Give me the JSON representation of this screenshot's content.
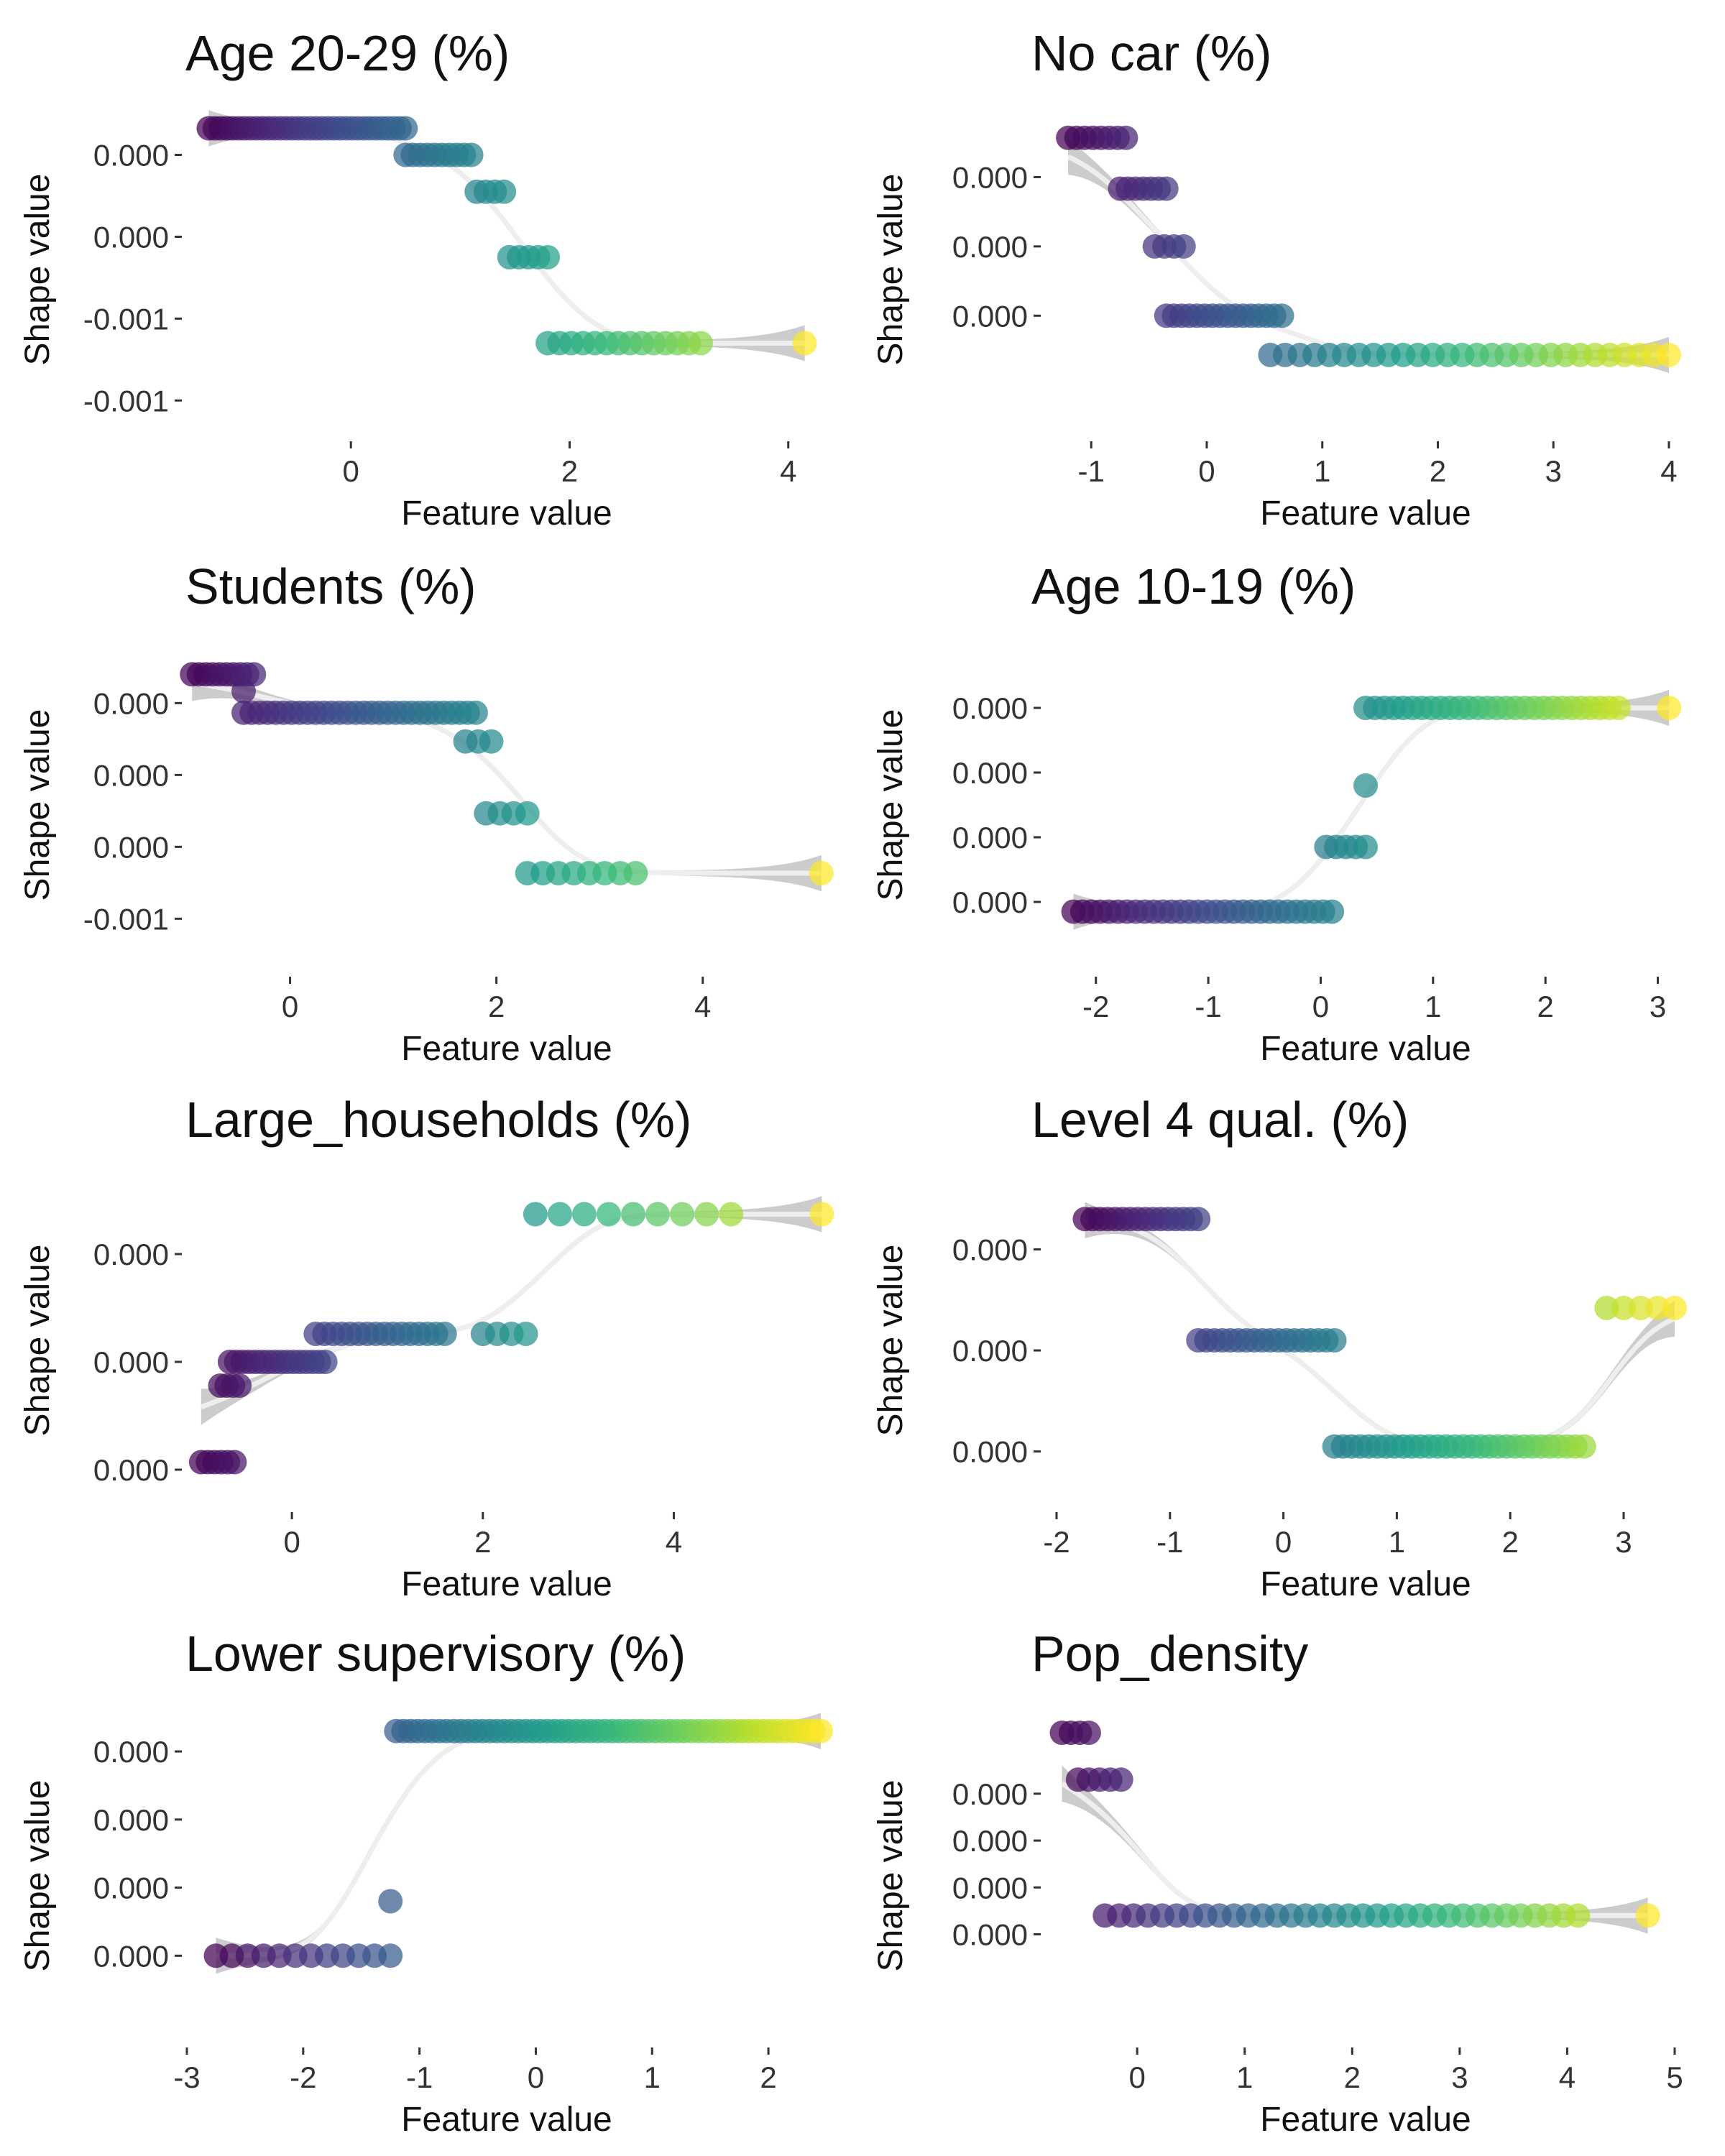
{
  "chart_data": [
    {
      "type": "scatter",
      "title": "Age 20-29 (%)",
      "xlabel": "Feature value",
      "ylabel": "Shape value",
      "xlim": [
        -1.5,
        4.35
      ],
      "ylim": [
        -0.00125,
        0.00033
      ],
      "xticks": [
        {
          "v": 0,
          "label": "0"
        },
        {
          "v": 2,
          "label": "2"
        },
        {
          "v": 4,
          "label": "4"
        }
      ],
      "yticks": [
        {
          "v": 0.0001,
          "label": "0.000"
        },
        {
          "v": -0.0003,
          "label": "0.000"
        },
        {
          "v": -0.0007,
          "label": "-0.001"
        },
        {
          "v": -0.0011,
          "label": "-0.001"
        }
      ],
      "steps": [
        {
          "x0": -1.3,
          "x1": 0.5,
          "y": 0.00023,
          "n": 34
        },
        {
          "x0": 0.5,
          "x1": 1.1,
          "y": 0.0001,
          "n": 10
        },
        {
          "x0": 1.15,
          "x1": 1.4,
          "y": -8e-05,
          "n": 4
        },
        {
          "x0": 1.45,
          "x1": 1.8,
          "y": -0.0004,
          "n": 5
        },
        {
          "x0": 1.8,
          "x1": 3.2,
          "y": -0.00082,
          "n": 14
        },
        {
          "x0": 4.15,
          "x1": 4.15,
          "y": -0.00082,
          "n": 1
        }
      ],
      "grid": false,
      "legend": "none"
    },
    {
      "type": "scatter",
      "title": "No car (%)",
      "xlabel": "Feature value",
      "ylabel": "Shape value",
      "xlim": [
        -1.3,
        4.05
      ],
      "ylim": [
        -0.00105,
        0.00035
      ],
      "xticks": [
        {
          "v": -1,
          "label": "-1"
        },
        {
          "v": 0,
          "label": "0"
        },
        {
          "v": 1,
          "label": "1"
        },
        {
          "v": 2,
          "label": "2"
        },
        {
          "v": 3,
          "label": "3"
        },
        {
          "v": 4,
          "label": "4"
        }
      ],
      "yticks": [
        {
          "v": 5e-05,
          "label": "0.000"
        },
        {
          "v": -0.00025,
          "label": "0.000"
        },
        {
          "v": -0.00055,
          "label": "0.000"
        }
      ],
      "steps": [
        {
          "x0": -1.2,
          "x1": -0.7,
          "y": 0.00022,
          "n": 8
        },
        {
          "x0": -0.75,
          "x1": -0.35,
          "y": 0.0,
          "n": 7
        },
        {
          "x0": -0.45,
          "x1": -0.2,
          "y": -0.00025,
          "n": 4
        },
        {
          "x0": -0.35,
          "x1": 0.65,
          "y": -0.00055,
          "n": 16
        },
        {
          "x0": 0.55,
          "x1": 4.0,
          "y": -0.00072,
          "n": 28
        }
      ],
      "grid": false,
      "legend": "none"
    },
    {
      "type": "scatter",
      "title": "Students (%)",
      "xlabel": "Feature value",
      "ylabel": "Shape value",
      "xlim": [
        -1.0,
        5.2
      ],
      "ylim": [
        -0.0011,
        0.00025
      ],
      "xticks": [
        {
          "v": 0,
          "label": "0"
        },
        {
          "v": 2,
          "label": "2"
        },
        {
          "v": 4,
          "label": "4"
        }
      ],
      "yticks": [
        {
          "v": 0.0,
          "label": "0.000"
        },
        {
          "v": -0.0003,
          "label": "0.000"
        },
        {
          "v": -0.0006,
          "label": "0.000"
        },
        {
          "v": -0.0009,
          "label": "-0.001"
        }
      ],
      "steps": [
        {
          "x0": -0.95,
          "x1": -0.35,
          "y": 0.00012,
          "n": 10
        },
        {
          "x0": -0.45,
          "x1": -0.45,
          "y": 5e-05,
          "n": 1
        },
        {
          "x0": -0.45,
          "x1": 1.8,
          "y": -4e-05,
          "n": 30
        },
        {
          "x0": 1.7,
          "x1": 1.95,
          "y": -0.00016,
          "n": 3
        },
        {
          "x0": 1.9,
          "x1": 2.3,
          "y": -0.00046,
          "n": 4
        },
        {
          "x0": 2.3,
          "x1": 3.35,
          "y": -0.00071,
          "n": 8
        },
        {
          "x0": 5.15,
          "x1": 5.15,
          "y": -0.00071,
          "n": 1
        }
      ],
      "grid": false,
      "legend": "none"
    },
    {
      "type": "scatter",
      "title": "Age 10-19 (%)",
      "xlabel": "Feature value",
      "ylabel": "Shape value",
      "xlim": [
        -2.35,
        3.15
      ],
      "ylim": [
        -0.0001,
        0.0004
      ],
      "xticks": [
        {
          "v": -2,
          "label": "-2"
        },
        {
          "v": -1,
          "label": "-1"
        },
        {
          "v": 0,
          "label": "0"
        },
        {
          "v": 1,
          "label": "1"
        },
        {
          "v": 2,
          "label": "2"
        },
        {
          "v": 3,
          "label": "3"
        }
      ],
      "yticks": [
        {
          "v": 0.0003,
          "label": "0.000"
        },
        {
          "v": 0.0002,
          "label": "0.000"
        },
        {
          "v": 0.0001,
          "label": "0.000"
        },
        {
          "v": 0.0,
          "label": "0.000"
        }
      ],
      "steps": [
        {
          "x0": -2.2,
          "x1": 0.1,
          "y": -1.5e-05,
          "n": 30
        },
        {
          "x0": 0.05,
          "x1": 0.4,
          "y": 8.5e-05,
          "n": 5
        },
        {
          "x0": 0.4,
          "x1": 0.4,
          "y": 0.00018,
          "n": 1
        },
        {
          "x0": 0.4,
          "x1": 2.65,
          "y": 0.0003,
          "n": 28
        },
        {
          "x0": 3.1,
          "x1": 3.1,
          "y": 0.0003,
          "n": 1
        }
      ],
      "grid": false,
      "legend": "none"
    },
    {
      "type": "scatter",
      "title": "Large_households (%)",
      "xlabel": "Feature value",
      "ylabel": "Shape value",
      "xlim": [
        -1.1,
        5.6
      ],
      "ylim": [
        -3e-05,
        0.00027
      ],
      "xticks": [
        {
          "v": 0,
          "label": "0"
        },
        {
          "v": 2,
          "label": "2"
        },
        {
          "v": 4,
          "label": "4"
        }
      ],
      "yticks": [
        {
          "v": 0.0002,
          "label": "0.000"
        },
        {
          "v": 0.0001,
          "label": "0.000"
        },
        {
          "v": 0.0,
          "label": "0.000"
        }
      ],
      "steps": [
        {
          "x0": -0.95,
          "x1": -0.6,
          "y": 7e-06,
          "n": 6
        },
        {
          "x0": -0.75,
          "x1": -0.55,
          "y": 7.8e-05,
          "n": 4
        },
        {
          "x0": -0.65,
          "x1": 0.35,
          "y": 0.0001,
          "n": 16
        },
        {
          "x0": 0.25,
          "x1": 1.6,
          "y": 0.000126,
          "n": 16
        },
        {
          "x0": 2.0,
          "x1": 2.45,
          "y": 0.000126,
          "n": 4
        },
        {
          "x0": 2.55,
          "x1": 4.6,
          "y": 0.000237,
          "n": 9
        },
        {
          "x0": 5.55,
          "x1": 5.55,
          "y": 0.000237,
          "n": 1
        }
      ],
      "grid": false,
      "legend": "none"
    },
    {
      "type": "scatter",
      "title": "Level 4 qual. (%)",
      "xlabel": "Feature value",
      "ylabel": "Shape value",
      "xlim": [
        -2.0,
        3.45
      ],
      "ylim": [
        -5e-05,
        0.00027
      ],
      "xticks": [
        {
          "v": -2,
          "label": "-2"
        },
        {
          "v": -1,
          "label": "-1"
        },
        {
          "v": 0,
          "label": "0"
        },
        {
          "v": 1,
          "label": "1"
        },
        {
          "v": 2,
          "label": "2"
        },
        {
          "v": 3,
          "label": "3"
        }
      ],
      "yticks": [
        {
          "v": 0.0002,
          "label": "0.000"
        },
        {
          "v": 0.0001,
          "label": "0.000"
        },
        {
          "v": 0.0,
          "label": "0.000"
        }
      ],
      "steps": [
        {
          "x0": -1.75,
          "x1": -0.75,
          "y": 0.00023,
          "n": 16
        },
        {
          "x0": -0.75,
          "x1": 0.45,
          "y": 0.00011,
          "n": 18
        },
        {
          "x0": 0.45,
          "x1": 2.65,
          "y": 5e-06,
          "n": 30
        },
        {
          "x0": 2.85,
          "x1": 3.45,
          "y": 0.000142,
          "n": 5
        }
      ],
      "grid": false,
      "legend": "none"
    },
    {
      "type": "scatter",
      "title": "Lower supervisory (%)",
      "xlabel": "Feature value",
      "ylabel": "Shape value",
      "xlim": [
        -3.0,
        2.5
      ],
      "ylim": [
        -1.2e-05,
        3.55e-05
      ],
      "xticks": [
        {
          "v": -3,
          "label": "-3"
        },
        {
          "v": -2,
          "label": "-2"
        },
        {
          "v": -1,
          "label": "-1"
        },
        {
          "v": 0,
          "label": "0"
        },
        {
          "v": 1,
          "label": "1"
        },
        {
          "v": 2,
          "label": "2"
        }
      ],
      "yticks": [
        {
          "v": 3e-05,
          "label": "0.000"
        },
        {
          "v": 2e-05,
          "label": "0.000"
        },
        {
          "v": 1e-05,
          "label": "0.000"
        },
        {
          "v": 0.0,
          "label": "0.000"
        }
      ],
      "steps": [
        {
          "x0": -2.75,
          "x1": -1.25,
          "y": 0.0,
          "n": 12
        },
        {
          "x0": -1.25,
          "x1": -1.25,
          "y": 8e-06,
          "n": 1
        },
        {
          "x0": -1.2,
          "x1": 2.45,
          "y": 3.3e-05,
          "n": 60
        }
      ],
      "grid": false,
      "legend": "none"
    },
    {
      "type": "scatter",
      "title": "Pop_density",
      "xlabel": "Feature value",
      "ylabel": "Shape value",
      "xlim": [
        -0.75,
        5.0
      ],
      "ylim": [
        -1.2e-05,
        5.7e-05
      ],
      "xticks": [
        {
          "v": 0,
          "label": "0"
        },
        {
          "v": 1,
          "label": "1"
        },
        {
          "v": 2,
          "label": "2"
        },
        {
          "v": 3,
          "label": "3"
        },
        {
          "v": 4,
          "label": "4"
        },
        {
          "v": 5,
          "label": "5"
        }
      ],
      "yticks": [
        {
          "v": 4e-05,
          "label": "0.000"
        },
        {
          "v": 3e-05,
          "label": "0.000"
        },
        {
          "v": 2e-05,
          "label": "0.000"
        },
        {
          "v": 1e-05,
          "label": "0.000"
        }
      ],
      "steps": [
        {
          "x0": -0.7,
          "x1": -0.45,
          "y": 5.3e-05,
          "n": 4
        },
        {
          "x0": -0.55,
          "x1": -0.15,
          "y": 4.3e-05,
          "n": 5
        },
        {
          "x0": -0.3,
          "x1": 4.1,
          "y": 1.4e-05,
          "n": 34
        },
        {
          "x0": 4.75,
          "x1": 4.75,
          "y": 1.4e-05,
          "n": 1
        }
      ],
      "grid": false,
      "legend": "none"
    }
  ]
}
